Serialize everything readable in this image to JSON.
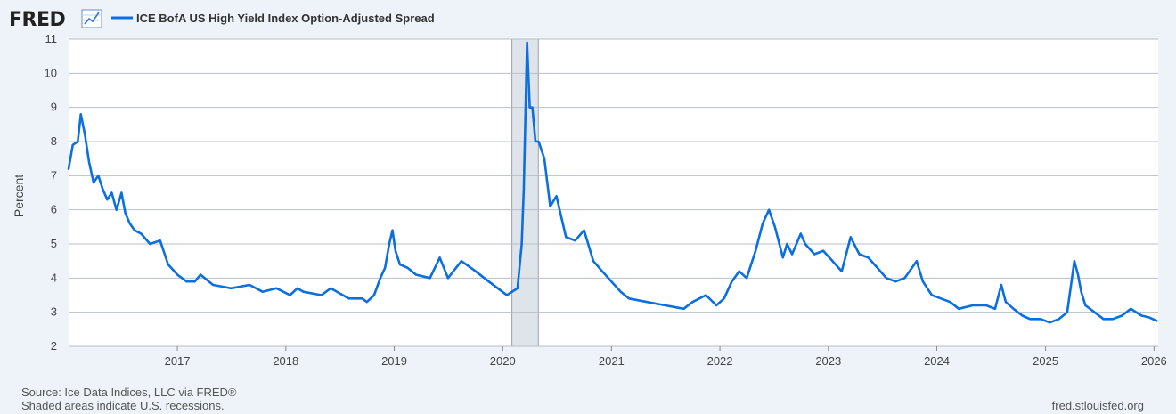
{
  "branding": {
    "logo": "FRED",
    "site_url": "fred.stlouisfed.org"
  },
  "footer": {
    "source": "Source: Ice Data Indices, LLC via FRED®",
    "recession_note": "Shaded areas indicate U.S. recessions."
  },
  "colors": {
    "series_line": "#0b6fe0",
    "recession_fill": "#dfe3ea",
    "grid": "#b9bec7",
    "plot_bg": "#ffffff",
    "page_bg": "#eef3fa"
  },
  "icons": {
    "logo_chart": "line-chart-icon"
  },
  "chart_data": {
    "type": "line",
    "title": "",
    "xlabel": "",
    "ylabel": "Percent",
    "xlim": [
      "2016-01-01",
      "2026-01-15"
    ],
    "ylim": [
      2,
      11
    ],
    "yticks": [
      2,
      3,
      4,
      5,
      6,
      7,
      8,
      9,
      10,
      11
    ],
    "xticks": [
      "2017",
      "2018",
      "2019",
      "2020",
      "2021",
      "2022",
      "2023",
      "2024",
      "2025",
      "2026"
    ],
    "grid": true,
    "legend": "top-left",
    "recessions": [
      {
        "start": "2020-02-01",
        "end": "2020-04-30"
      }
    ],
    "series": [
      {
        "name": "ICE BofA US High Yield Index Option-Adjusted Spread",
        "x": [
          "2016-01-01",
          "2016-01-15",
          "2016-02-01",
          "2016-02-11",
          "2016-02-25",
          "2016-03-10",
          "2016-03-25",
          "2016-04-10",
          "2016-04-25",
          "2016-05-10",
          "2016-05-25",
          "2016-06-10",
          "2016-06-27",
          "2016-07-10",
          "2016-07-25",
          "2016-08-10",
          "2016-09-01",
          "2016-10-01",
          "2016-11-04",
          "2016-12-01",
          "2017-01-01",
          "2017-02-01",
          "2017-03-01",
          "2017-03-20",
          "2017-05-01",
          "2017-07-01",
          "2017-09-01",
          "2017-10-15",
          "2017-12-01",
          "2018-01-15",
          "2018-02-09",
          "2018-03-01",
          "2018-05-01",
          "2018-06-01",
          "2018-08-01",
          "2018-09-15",
          "2018-10-01",
          "2018-10-25",
          "2018-11-15",
          "2018-12-01",
          "2018-12-15",
          "2018-12-26",
          "2019-01-05",
          "2019-01-20",
          "2019-02-15",
          "2019-03-15",
          "2019-05-01",
          "2019-06-03",
          "2019-07-01",
          "2019-08-15",
          "2019-10-02",
          "2019-11-15",
          "2019-12-31",
          "2020-01-15",
          "2020-02-20",
          "2020-03-05",
          "2020-03-12",
          "2020-03-23",
          "2020-04-01",
          "2020-04-10",
          "2020-04-20",
          "2020-05-01",
          "2020-05-20",
          "2020-06-09",
          "2020-06-30",
          "2020-08-01",
          "2020-09-01",
          "2020-10-01",
          "2020-11-01",
          "2020-12-01",
          "2021-01-01",
          "2021-02-01",
          "2021-03-01",
          "2021-05-01",
          "2021-07-01",
          "2021-09-01",
          "2021-10-01",
          "2021-11-15",
          "2021-12-20",
          "2022-01-15",
          "2022-02-10",
          "2022-03-07",
          "2022-04-01",
          "2022-05-01",
          "2022-05-25",
          "2022-06-15",
          "2022-07-05",
          "2022-08-01",
          "2022-08-15",
          "2022-09-01",
          "2022-09-30",
          "2022-10-15",
          "2022-11-15",
          "2022-12-15",
          "2023-01-15",
          "2023-02-15",
          "2023-03-17",
          "2023-04-15",
          "2023-05-15",
          "2023-06-15",
          "2023-07-15",
          "2023-08-15",
          "2023-09-15",
          "2023-10-25",
          "2023-11-15",
          "2023-12-15",
          "2024-01-15",
          "2024-02-15",
          "2024-03-15",
          "2024-05-01",
          "2024-06-15",
          "2024-07-15",
          "2024-08-05",
          "2024-08-20",
          "2024-09-15",
          "2024-10-15",
          "2024-11-10",
          "2024-12-15",
          "2025-01-15",
          "2025-02-15",
          "2025-03-15",
          "2025-04-08",
          "2025-04-20",
          "2025-05-01",
          "2025-05-15",
          "2025-06-15",
          "2025-07-15",
          "2025-08-15",
          "2025-09-15",
          "2025-10-15",
          "2025-11-20",
          "2025-12-15",
          "2026-01-10"
        ],
        "values": [
          7.2,
          7.9,
          8.0,
          8.8,
          8.2,
          7.4,
          6.8,
          7.0,
          6.6,
          6.3,
          6.5,
          6.0,
          6.5,
          5.9,
          5.6,
          5.4,
          5.3,
          5.0,
          5.1,
          4.4,
          4.1,
          3.9,
          3.9,
          4.1,
          3.8,
          3.7,
          3.8,
          3.6,
          3.7,
          3.5,
          3.7,
          3.6,
          3.5,
          3.7,
          3.4,
          3.4,
          3.3,
          3.5,
          4.0,
          4.3,
          5.0,
          5.4,
          4.8,
          4.4,
          4.3,
          4.1,
          4.0,
          4.6,
          4.0,
          4.5,
          4.2,
          3.9,
          3.6,
          3.5,
          3.7,
          5.0,
          6.6,
          10.9,
          9.0,
          9.0,
          8.0,
          8.0,
          7.5,
          6.1,
          6.4,
          5.2,
          5.1,
          5.4,
          4.5,
          4.2,
          3.9,
          3.6,
          3.4,
          3.3,
          3.2,
          3.1,
          3.3,
          3.5,
          3.2,
          3.4,
          3.9,
          4.2,
          4.0,
          4.8,
          5.6,
          6.0,
          5.5,
          4.6,
          5.0,
          4.7,
          5.3,
          5.0,
          4.7,
          4.8,
          4.5,
          4.2,
          5.2,
          4.7,
          4.6,
          4.3,
          4.0,
          3.9,
          4.0,
          4.5,
          3.9,
          3.5,
          3.4,
          3.3,
          3.1,
          3.2,
          3.2,
          3.1,
          3.8,
          3.3,
          3.1,
          2.9,
          2.8,
          2.8,
          2.7,
          2.8,
          3.0,
          4.5,
          4.1,
          3.6,
          3.2,
          3.0,
          2.8,
          2.8,
          2.9,
          3.1,
          2.9,
          2.85,
          2.75
        ]
      }
    ]
  }
}
